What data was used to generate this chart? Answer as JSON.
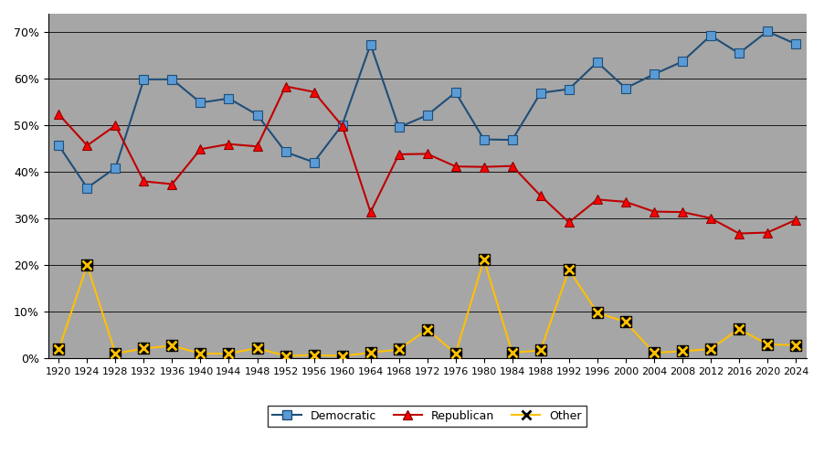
{
  "years": [
    1920,
    1924,
    1928,
    1932,
    1936,
    1940,
    1944,
    1948,
    1952,
    1956,
    1960,
    1964,
    1968,
    1972,
    1976,
    1980,
    1984,
    1988,
    1992,
    1996,
    2000,
    2004,
    2008,
    2012,
    2016,
    2020,
    2024
  ],
  "democratic": [
    0.457,
    0.366,
    0.409,
    0.599,
    0.599,
    0.549,
    0.558,
    0.523,
    0.443,
    0.421,
    0.501,
    0.674,
    0.496,
    0.522,
    0.571,
    0.47,
    0.469,
    0.57,
    0.578,
    0.636,
    0.58,
    0.61,
    0.637,
    0.693,
    0.655,
    0.702,
    0.675
  ],
  "republican": [
    0.524,
    0.457,
    0.5,
    0.38,
    0.374,
    0.449,
    0.46,
    0.455,
    0.584,
    0.572,
    0.499,
    0.314,
    0.438,
    0.439,
    0.412,
    0.411,
    0.413,
    0.349,
    0.292,
    0.341,
    0.336,
    0.315,
    0.314,
    0.301,
    0.268,
    0.27,
    0.297
  ],
  "other": [
    0.019,
    0.2,
    0.01,
    0.021,
    0.027,
    0.01,
    0.01,
    0.022,
    0.005,
    0.007,
    0.005,
    0.012,
    0.019,
    0.062,
    0.01,
    0.212,
    0.012,
    0.017,
    0.19,
    0.098,
    0.078,
    0.012,
    0.015,
    0.02,
    0.063,
    0.03,
    0.028
  ],
  "dem_face_color": "#5B9BD5",
  "dem_edge_color": "#1F4E79",
  "dem_line_color": "#1F4E79",
  "rep_face_color": "#FF0000",
  "rep_edge_color": "#8B0000",
  "rep_line_color": "#C00000",
  "other_line_color": "#FFC000",
  "other_marker_bg": "#000000",
  "other_marker_fg": "#FFC000",
  "bg_color": "#A6A6A6",
  "grid_color": "#000000",
  "yticks": [
    0.0,
    0.1,
    0.2,
    0.3,
    0.4,
    0.5,
    0.6,
    0.7
  ],
  "ytick_labels": [
    "0%",
    "10%",
    "20%",
    "30%",
    "40%",
    "50%",
    "60%",
    "70%"
  ],
  "ylim_min": 0.0,
  "ylim_max": 0.74,
  "xlabel_fontsize": 8,
  "ylabel_fontsize": 9,
  "legend_fontsize": 9
}
